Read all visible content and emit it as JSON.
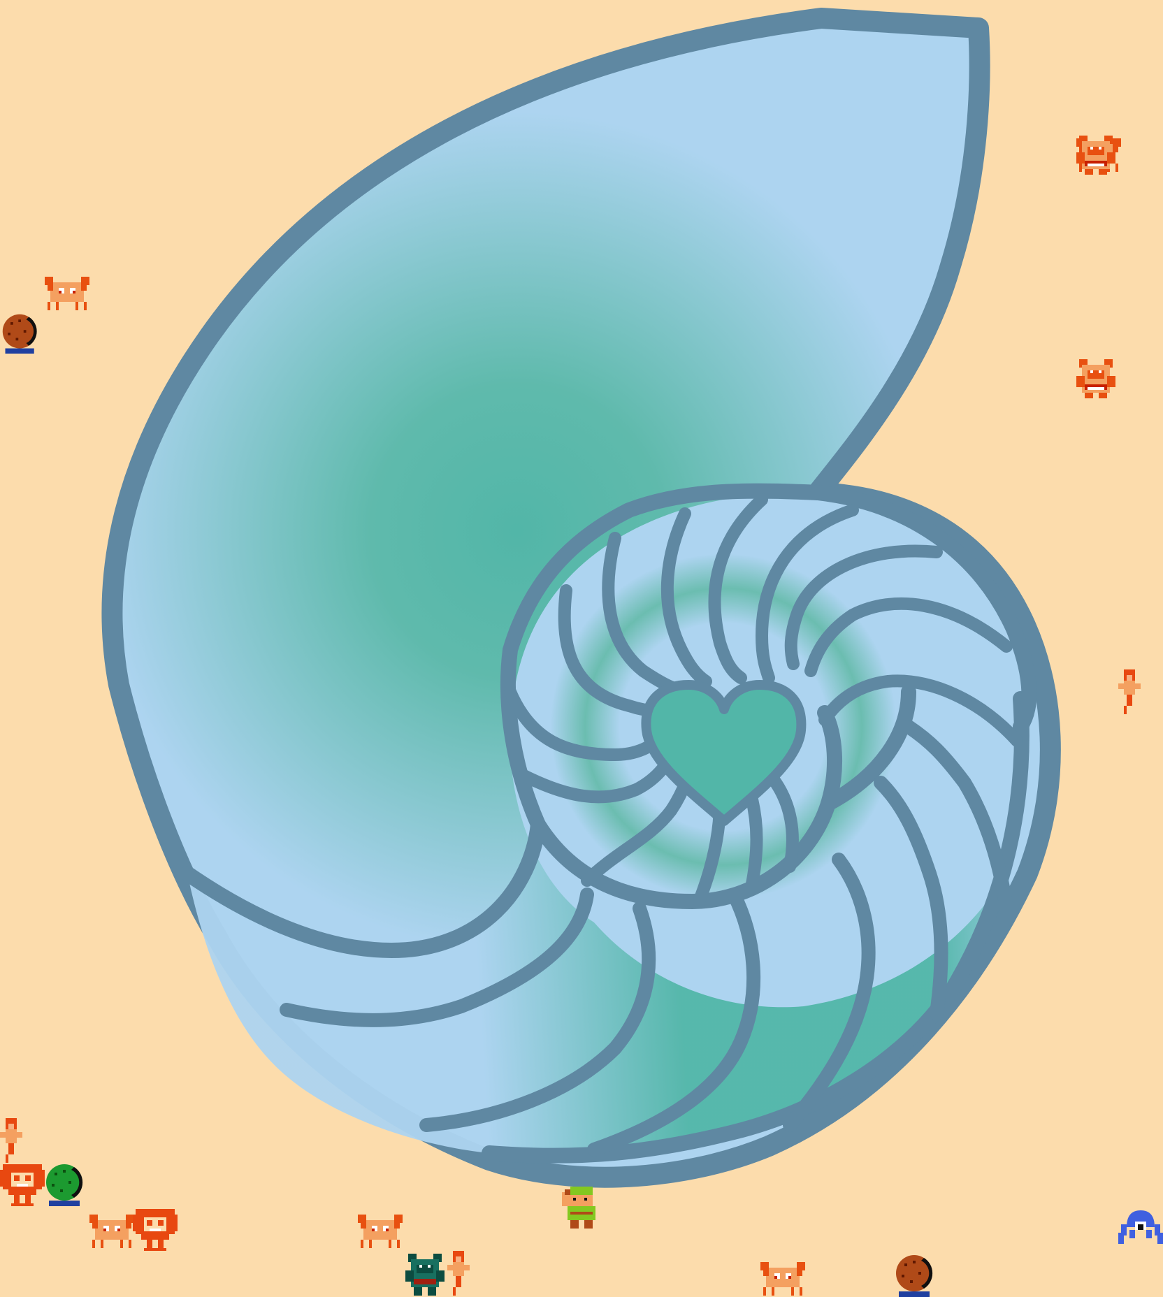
{
  "scene": {
    "background_color": "#fcdcac",
    "shell_outline_color": "#5f88a2",
    "shell_light_color": "#add4f0",
    "shell_teal_color": "#52b6a8",
    "heart_color": "#52b6a8"
  },
  "sprites": [
    {
      "type": "crab",
      "icon": "crab-icon"
    },
    {
      "type": "crab",
      "icon": "crab-icon"
    },
    {
      "type": "crab",
      "icon": "crab-icon"
    },
    {
      "type": "crab",
      "icon": "crab-icon"
    },
    {
      "type": "crab",
      "icon": "crab-icon"
    },
    {
      "type": "moblin",
      "icon": "moblin-icon"
    },
    {
      "type": "moblin",
      "icon": "moblin-icon"
    },
    {
      "type": "moblin-dark",
      "icon": "moblin-icon"
    },
    {
      "type": "bush-creature",
      "icon": "brown-bush-icon"
    },
    {
      "type": "bush-creature",
      "icon": "brown-bush-icon"
    },
    {
      "type": "bush-creature",
      "icon": "green-bush-icon"
    },
    {
      "type": "lion-creature",
      "icon": "lion-icon"
    },
    {
      "type": "lion-creature",
      "icon": "lion-icon"
    },
    {
      "type": "fairy",
      "icon": "fairy-icon"
    },
    {
      "type": "fairy",
      "icon": "fairy-icon"
    },
    {
      "type": "fairy",
      "icon": "fairy-icon"
    },
    {
      "type": "link",
      "icon": "link-hero-icon"
    },
    {
      "type": "tektite",
      "icon": "tektite-icon"
    }
  ]
}
